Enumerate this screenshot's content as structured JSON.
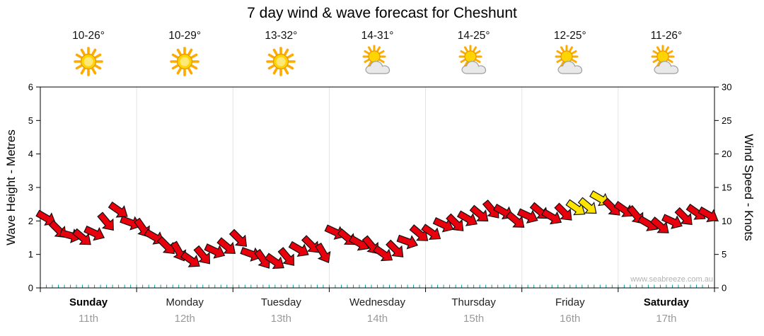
{
  "title": "7 day wind & wave forecast for Cheshunt",
  "watermark": "www.seabreeze.com.au",
  "axes": {
    "left_label": "Wave Height - Metres",
    "right_label": "Wind Speed - Knots",
    "left_ticks": [
      0,
      1,
      2,
      3,
      4,
      5,
      6
    ],
    "right_ticks": [
      0,
      5,
      10,
      15,
      20,
      25,
      30
    ]
  },
  "days": [
    {
      "name": "Sunday",
      "date": "11th",
      "temp": "10-26°",
      "icon": "sunny",
      "weekend": true
    },
    {
      "name": "Monday",
      "date": "12th",
      "temp": "10-29°",
      "icon": "sunny",
      "weekend": false
    },
    {
      "name": "Tuesday",
      "date": "13th",
      "temp": "13-32°",
      "icon": "sunny",
      "weekend": false
    },
    {
      "name": "Wednesday",
      "date": "14th",
      "temp": "14-31°",
      "icon": "partly-cloudy",
      "weekend": false
    },
    {
      "name": "Thursday",
      "date": "15th",
      "temp": "14-25°",
      "icon": "partly-cloudy",
      "weekend": false
    },
    {
      "name": "Friday",
      "date": "16th",
      "temp": "12-25°",
      "icon": "partly-cloudy",
      "weekend": false
    },
    {
      "name": "Saturday",
      "date": "17th",
      "temp": "11-26°",
      "icon": "partly-cloudy",
      "weekend": true
    }
  ],
  "colors": {
    "arrow_red": "#E8000D",
    "arrow_yellow": "#FFE400",
    "arrow_outline": "#111111",
    "tick_teal": "#00A3A3",
    "grid_gray": "#E3E3E3",
    "date_gray": "#9A9A9A"
  },
  "chart_data": {
    "type": "wind-arrows",
    "title": "7 day wind & wave forecast for Cheshunt",
    "x_unit": "3-hour steps, 8 per day across 7 days (Sunday 11th - Saturday 17th)",
    "points_per_day": 8,
    "y_left_axis": {
      "label": "Wave Height - Metres",
      "range": [
        0,
        6
      ]
    },
    "y_right_axis": {
      "label": "Wind Speed - Knots",
      "range": [
        0,
        30
      ]
    },
    "series": [
      {
        "name": "Wind Speed (knots)",
        "values": [
          10,
          9,
          8,
          7.5,
          8,
          9.5,
          12,
          10,
          9,
          7.5,
          6,
          5,
          4.5,
          5,
          5.5,
          6,
          7,
          5.5,
          4.5,
          4,
          4.5,
          5.5,
          6,
          5.5,
          8.5,
          7.5,
          6.5,
          6,
          5.5,
          6,
          7,
          8,
          8,
          9,
          10,
          10.5,
          11,
          11.5,
          11,
          10.5,
          11,
          11.5,
          10.5,
          11,
          11.5,
          12.5,
          13.5,
          12,
          11.5,
          10.5,
          10,
          9.5,
          10,
          10.5,
          11,
          10.5
        ]
      }
    ],
    "directions_deg": [
      30,
      45,
      15,
      40,
      25,
      50,
      35,
      20,
      55,
      30,
      45,
      60,
      35,
      50,
      25,
      40,
      45,
      20,
      55,
      35,
      50,
      30,
      45,
      60,
      25,
      40,
      30,
      50,
      35,
      45,
      20,
      40,
      35,
      25,
      45,
      30,
      40,
      50,
      30,
      40,
      25,
      40,
      30,
      45,
      35,
      40,
      30,
      45,
      35,
      50,
      30,
      40,
      25,
      45,
      35,
      30
    ],
    "yellow_indices": [
      44,
      45,
      46
    ],
    "legend": "red arrows = normal wind, yellow arrows = stronger wind peak late Friday"
  }
}
